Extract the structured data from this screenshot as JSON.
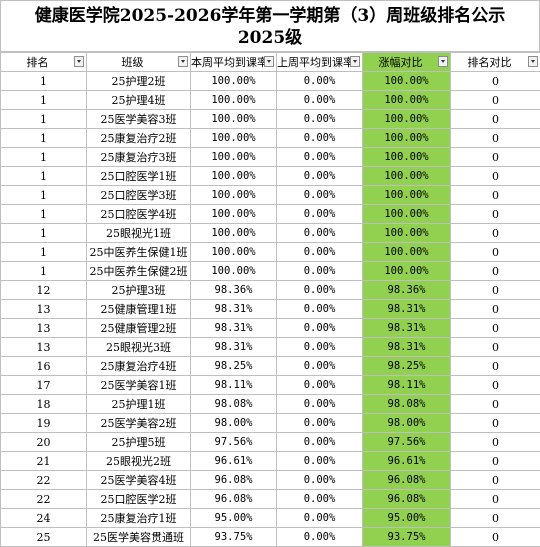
{
  "title_line1": "健康医学院2025-2026学年第一学期第（3）周班级排名公示",
  "title_line2": "2025级",
  "headers": [
    "排名",
    "班级",
    "本周平均到课率",
    "上周平均到课率",
    "涨幅对比",
    "排名对比"
  ],
  "rows": [
    {
      "rank": "1",
      "class": "25护理2班",
      "this_week": "100.00%",
      "last_week": "0.00%",
      "change": "100.00%",
      "rank_change": "0"
    },
    {
      "rank": "1",
      "class": "25护理4班",
      "this_week": "100.00%",
      "last_week": "0.00%",
      "change": "100.00%",
      "rank_change": "0"
    },
    {
      "rank": "1",
      "class": "25医学美容3班",
      "this_week": "100.00%",
      "last_week": "0.00%",
      "change": "100.00%",
      "rank_change": "0"
    },
    {
      "rank": "1",
      "class": "25康复治疗2班",
      "this_week": "100.00%",
      "last_week": "0.00%",
      "change": "100.00%",
      "rank_change": "0"
    },
    {
      "rank": "1",
      "class": "25康复治疗3班",
      "this_week": "100.00%",
      "last_week": "0.00%",
      "change": "100.00%",
      "rank_change": "0"
    },
    {
      "rank": "1",
      "class": "25口腔医学1班",
      "this_week": "100.00%",
      "last_week": "0.00%",
      "change": "100.00%",
      "rank_change": "0"
    },
    {
      "rank": "1",
      "class": "25口腔医学3班",
      "this_week": "100.00%",
      "last_week": "0.00%",
      "change": "100.00%",
      "rank_change": "0"
    },
    {
      "rank": "1",
      "class": "25口腔医学4班",
      "this_week": "100.00%",
      "last_week": "0.00%",
      "change": "100.00%",
      "rank_change": "0"
    },
    {
      "rank": "1",
      "class": "25眼视光1班",
      "this_week": "100.00%",
      "last_week": "0.00%",
      "change": "100.00%",
      "rank_change": "0"
    },
    {
      "rank": "1",
      "class": "25中医养生保健1班",
      "this_week": "100.00%",
      "last_week": "0.00%",
      "change": "100.00%",
      "rank_change": "0"
    },
    {
      "rank": "1",
      "class": "25中医养生保健2班",
      "this_week": "100.00%",
      "last_week": "0.00%",
      "change": "100.00%",
      "rank_change": "0"
    },
    {
      "rank": "12",
      "class": "25护理3班",
      "this_week": "98.36%",
      "last_week": "0.00%",
      "change": "98.36%",
      "rank_change": "0"
    },
    {
      "rank": "13",
      "class": "25健康管理1班",
      "this_week": "98.31%",
      "last_week": "0.00%",
      "change": "98.31%",
      "rank_change": "0"
    },
    {
      "rank": "13",
      "class": "25健康管理2班",
      "this_week": "98.31%",
      "last_week": "0.00%",
      "change": "98.31%",
      "rank_change": "0"
    },
    {
      "rank": "13",
      "class": "25眼视光3班",
      "this_week": "98.31%",
      "last_week": "0.00%",
      "change": "98.31%",
      "rank_change": "0"
    },
    {
      "rank": "16",
      "class": "25康复治疗4班",
      "this_week": "98.25%",
      "last_week": "0.00%",
      "change": "98.25%",
      "rank_change": "0"
    },
    {
      "rank": "17",
      "class": "25医学美容1班",
      "this_week": "98.11%",
      "last_week": "0.00%",
      "change": "98.11%",
      "rank_change": "0"
    },
    {
      "rank": "18",
      "class": "25护理1班",
      "this_week": "98.08%",
      "last_week": "0.00%",
      "change": "98.08%",
      "rank_change": "0"
    },
    {
      "rank": "19",
      "class": "25医学美容2班",
      "this_week": "98.00%",
      "last_week": "0.00%",
      "change": "98.00%",
      "rank_change": "0"
    },
    {
      "rank": "20",
      "class": "25护理5班",
      "this_week": "97.56%",
      "last_week": "0.00%",
      "change": "97.56%",
      "rank_change": "0"
    },
    {
      "rank": "21",
      "class": "25眼视光2班",
      "this_week": "96.61%",
      "last_week": "0.00%",
      "change": "96.61%",
      "rank_change": "0"
    },
    {
      "rank": "22",
      "class": "25医学美容4班",
      "this_week": "96.08%",
      "last_week": "0.00%",
      "change": "96.08%",
      "rank_change": "0"
    },
    {
      "rank": "22",
      "class": "25口腔医学2班",
      "this_week": "96.08%",
      "last_week": "0.00%",
      "change": "96.08%",
      "rank_change": "0"
    },
    {
      "rank": "24",
      "class": "25康复治疗1班",
      "this_week": "95.00%",
      "last_week": "0.00%",
      "change": "95.00%",
      "rank_change": "0"
    },
    {
      "rank": "25",
      "class": "25医学美容贯通班",
      "this_week": "93.75%",
      "last_week": "0.00%",
      "change": "93.75%",
      "rank_change": "0"
    }
  ],
  "colors": {
    "change_fill": "#92d050",
    "grid": "#bfbfbf"
  }
}
